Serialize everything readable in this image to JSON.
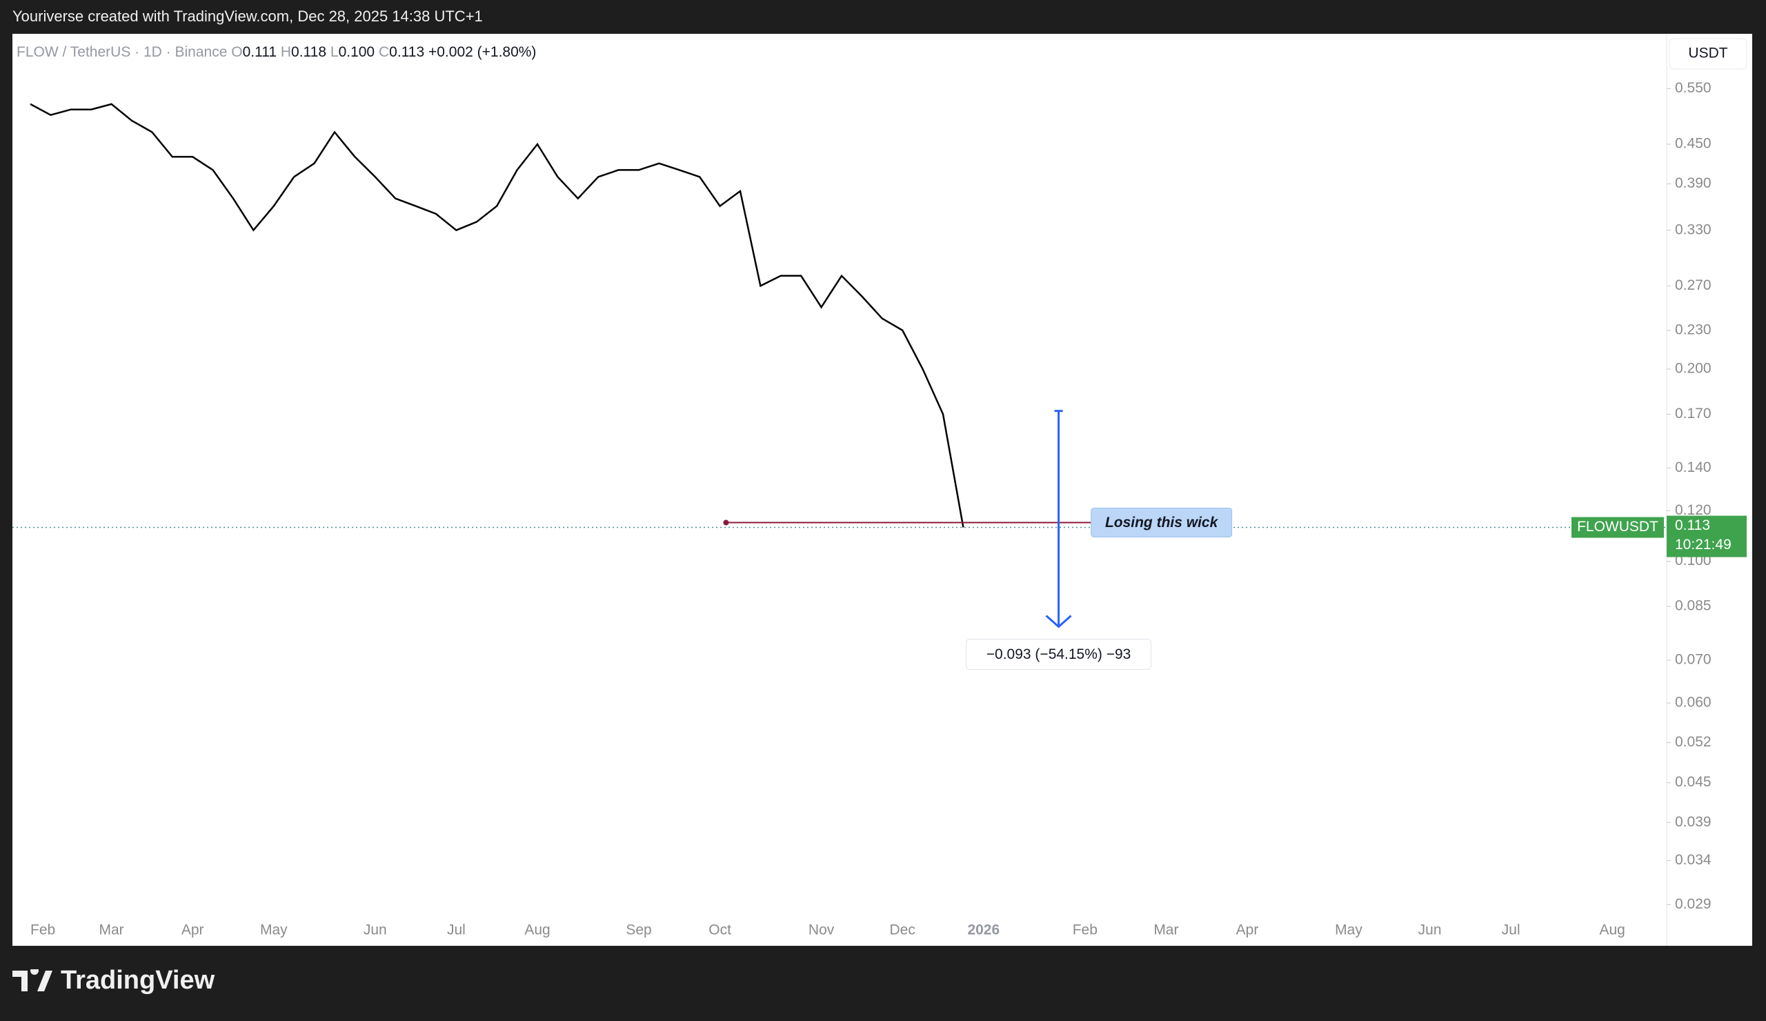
{
  "header": {
    "caption": "Youriverse created with TradingView.com, Dec 28, 2025 14:38 UTC+1"
  },
  "footer": {
    "brand": "TradingView"
  },
  "legend": {
    "symbol": "FLOW / TetherUS · 1D · Binance",
    "o_label": "O",
    "o": "0.111",
    "h_label": "H",
    "h": "0.118",
    "l_label": "L",
    "l": "0.100",
    "c_label": "C",
    "c": "0.113",
    "change": "+0.002 (+1.80%)"
  },
  "currency_button": "USDT",
  "chart_data": {
    "type": "line",
    "log_scale": true,
    "categories": [
      "Feb",
      null,
      null,
      null,
      "Mar",
      null,
      null,
      null,
      "Apr",
      null,
      null,
      null,
      "May",
      null,
      null,
      null,
      null,
      "Jun",
      null,
      null,
      null,
      "Jul",
      null,
      null,
      null,
      "Aug",
      null,
      null,
      null,
      null,
      "Sep",
      null,
      null,
      null,
      "Oct",
      null,
      null,
      null,
      null,
      "Nov",
      null,
      null,
      null,
      "Dec",
      null,
      null,
      null,
      "2026",
      null,
      null,
      null,
      null,
      "Feb",
      null,
      null,
      null,
      "Mar",
      null,
      null,
      null,
      "Apr",
      null,
      null,
      null,
      null,
      "May",
      null,
      null,
      null,
      "Jun",
      null,
      null,
      null,
      "Jul",
      null,
      null,
      null,
      null,
      "Aug",
      null,
      null
    ],
    "series": [
      {
        "name": "FLOWUSDT",
        "color": "#000000",
        "values": [
          0.52,
          0.5,
          0.51,
          0.51,
          0.52,
          0.49,
          0.47,
          0.43,
          0.43,
          0.41,
          0.37,
          0.33,
          0.36,
          0.4,
          0.42,
          0.47,
          0.43,
          0.4,
          0.37,
          0.36,
          0.35,
          0.33,
          0.34,
          0.36,
          0.41,
          0.45,
          0.4,
          0.37,
          0.4,
          0.41,
          0.41,
          0.42,
          0.41,
          0.4,
          0.36,
          0.38,
          0.27,
          0.28,
          0.28,
          0.25,
          0.28,
          0.26,
          0.24,
          0.23,
          0.2,
          0.17,
          0.113,
          null,
          null,
          null,
          null,
          null,
          null,
          null,
          null,
          null,
          null,
          null,
          null,
          null,
          null,
          null,
          null,
          null,
          null,
          null,
          null,
          null,
          null,
          null,
          null,
          null,
          null,
          null,
          null,
          null,
          null,
          null,
          null,
          null,
          null
        ]
      }
    ],
    "ylim": [
      0.025,
      0.67
    ],
    "yticks": [
      {
        "value": 0.55,
        "label": "0.550"
      },
      {
        "value": 0.45,
        "label": "0.450"
      },
      {
        "value": 0.39,
        "label": "0.390"
      },
      {
        "value": 0.33,
        "label": "0.330"
      },
      {
        "value": 0.27,
        "label": "0.270"
      },
      {
        "value": 0.23,
        "label": "0.230"
      },
      {
        "value": 0.2,
        "label": "0.200"
      },
      {
        "value": 0.17,
        "label": "0.170"
      },
      {
        "value": 0.14,
        "label": "0.140"
      },
      {
        "value": 0.12,
        "label": "0.120"
      },
      {
        "value": 0.1,
        "label": "0.100"
      },
      0.085,
      {
        "value": 0.07,
        "label": "0.070"
      },
      {
        "value": 0.06,
        "label": "0.060"
      },
      0.052,
      0.045,
      0.039,
      0.034,
      0.029
    ],
    "last_price": {
      "value": 0.113,
      "symbol": "FLOWUSDT",
      "countdown": "10:21:49",
      "color": "#3fa34d"
    },
    "level_line": {
      "value": 0.115,
      "text": "Losing this wick",
      "color": "#8b1a3a"
    },
    "measure": {
      "from": 0.172,
      "to": 0.079,
      "label": "−0.093 (−54.15%) −93",
      "color": "#2962ff"
    }
  }
}
